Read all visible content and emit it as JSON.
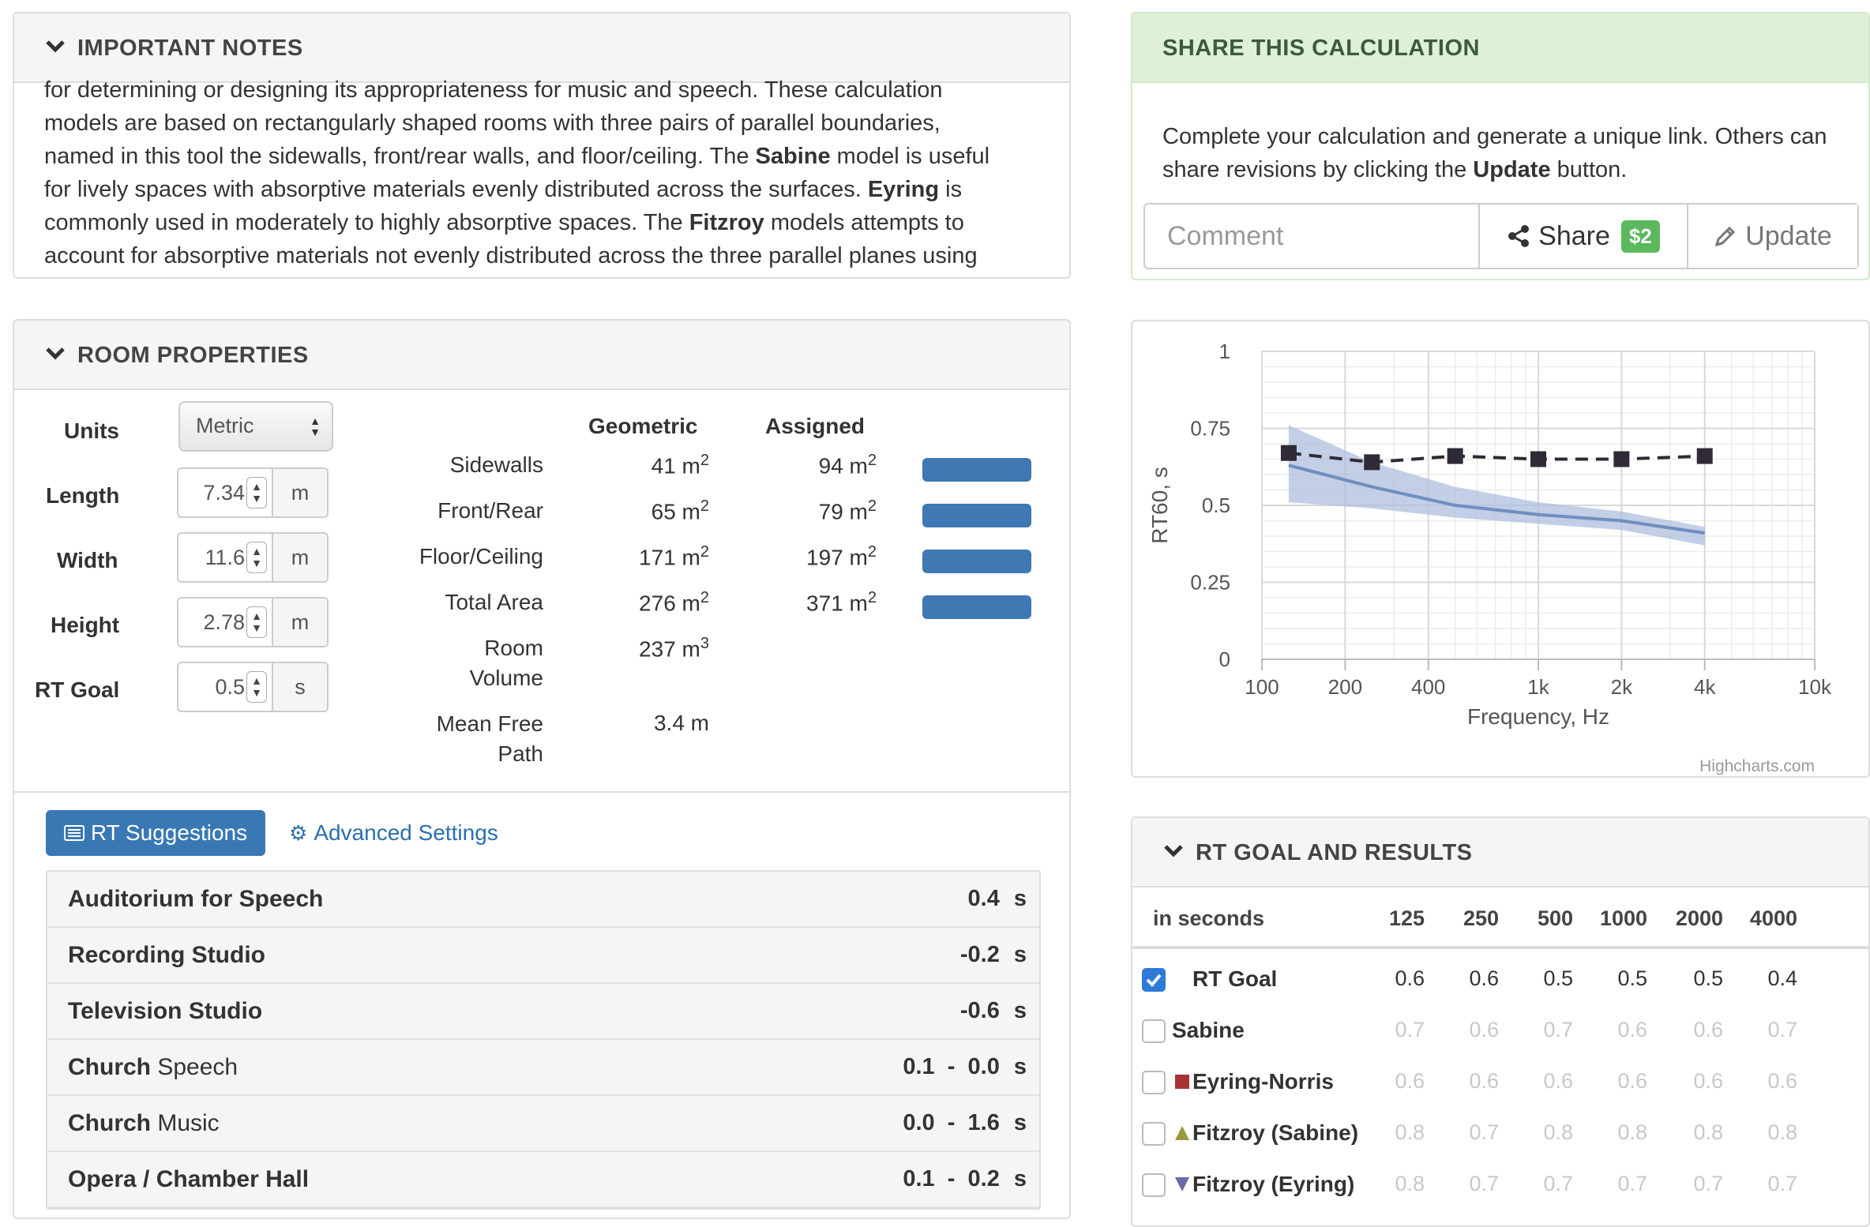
{
  "notes": {
    "title": "IMPORTANT NOTES",
    "lines": [
      [
        {
          "t": "for determining or designing its appropriateness for music and speech. These calculation"
        }
      ],
      [
        {
          "t": "models are based on rectangularly shaped rooms with three pairs of parallel boundaries,"
        }
      ],
      [
        {
          "t": "named in this tool the sidewalls, front/rear walls, and floor/ceiling. The "
        },
        {
          "t": "Sabine",
          "b": true
        },
        {
          "t": " model is useful"
        }
      ],
      [
        {
          "t": "for lively spaces with absorptive materials evenly distributed across the surfaces. "
        },
        {
          "t": "Eyring",
          "b": true
        },
        {
          "t": " is"
        }
      ],
      [
        {
          "t": "commonly used in moderately to highly absorptive spaces. The "
        },
        {
          "t": "Fitzroy",
          "b": true
        },
        {
          "t": " models attempts to"
        }
      ],
      [
        {
          "t": "account for absorptive materials not evenly distributed across the three parallel planes using"
        }
      ]
    ]
  },
  "share": {
    "title": "SHARE THIS CALCULATION",
    "desc_a": "Complete your calculation and generate a unique link. Others can share revisions by clicking the ",
    "desc_b": "Update",
    "desc_c": " button.",
    "comment_placeholder": "Comment",
    "share_label": "Share",
    "badge": "$2",
    "update_label": "Update"
  },
  "room": {
    "title": "ROOM PROPERTIES",
    "units_label": "Units",
    "units_value": "Metric",
    "fields": [
      {
        "label": "Length",
        "value": "7.34",
        "unit": "m"
      },
      {
        "label": "Width",
        "value": "11.6",
        "unit": "m"
      },
      {
        "label": "Height",
        "value": "2.78",
        "unit": "m"
      },
      {
        "label": "RT Goal",
        "value": "0.5",
        "unit": "s"
      }
    ],
    "col_geometric": "Geometric",
    "col_assigned": "Assigned",
    "rows": [
      {
        "label": "Sidewalls",
        "geo": "41 m",
        "geo_exp": "2",
        "asg": "94 m",
        "asg_exp": "2",
        "bar": true
      },
      {
        "label": "Front/Rear",
        "geo": "65 m",
        "geo_exp": "2",
        "asg": "79 m",
        "asg_exp": "2",
        "bar": true
      },
      {
        "label": "Floor/Ceiling",
        "geo": "171 m",
        "geo_exp": "2",
        "asg": "197 m",
        "asg_exp": "2",
        "bar": true
      },
      {
        "label": "Total Area",
        "geo": "276 m",
        "geo_exp": "2",
        "asg": "371 m",
        "asg_exp": "2",
        "bar": true
      },
      {
        "label": "Room\nVolume",
        "geo": "237 m",
        "geo_exp": "3",
        "asg": "",
        "asg_exp": "",
        "bar": false
      },
      {
        "label": "Mean Free\nPath",
        "geo": "3.4 m",
        "geo_exp": "",
        "asg": "",
        "asg_exp": "",
        "bar": false
      }
    ],
    "rt_suggestions_label": "RT Suggestions",
    "advanced_label": "Advanced Settings",
    "suggestions": [
      {
        "bold": "Auditorium for Speech",
        "rest": "",
        "value": "0.4",
        "unit": "s"
      },
      {
        "bold": "Recording Studio",
        "rest": "",
        "value": "-0.2",
        "unit": "s"
      },
      {
        "bold": "Television Studio",
        "rest": "",
        "value": "-0.6",
        "unit": "s"
      },
      {
        "bold": "Church",
        "rest": " Speech",
        "value": "0.1  -  0.0",
        "unit": "s"
      },
      {
        "bold": "Church",
        "rest": " Music",
        "value": "0.0  -  1.6",
        "unit": "s"
      },
      {
        "bold": "Opera / Chamber Hall",
        "rest": "",
        "value": "0.1  -  0.2",
        "unit": "s"
      }
    ]
  },
  "chart_data": {
    "type": "line",
    "title": "",
    "xlabel": "Frequency, Hz",
    "ylabel": "RT60, s",
    "x_scale": "log",
    "xlim": [
      100,
      10000
    ],
    "ylim": [
      0,
      1
    ],
    "x_ticks": [
      {
        "v": 100,
        "t": "100"
      },
      {
        "v": 200,
        "t": "200"
      },
      {
        "v": 400,
        "t": "400"
      },
      {
        "v": 1000,
        "t": "1k"
      },
      {
        "v": 2000,
        "t": "2k"
      },
      {
        "v": 4000,
        "t": "4k"
      },
      {
        "v": 10000,
        "t": "10k"
      }
    ],
    "y_ticks": [
      {
        "v": 0,
        "t": "0"
      },
      {
        "v": 0.25,
        "t": "0.25"
      },
      {
        "v": 0.5,
        "t": "0.5"
      },
      {
        "v": 0.75,
        "t": "0.75"
      },
      {
        "v": 1,
        "t": "1"
      }
    ],
    "grid": true,
    "credit": "Highcharts.com",
    "series": [
      {
        "style": "dashed-square-markers",
        "color": "#2f2a35",
        "x": [
          125,
          250,
          500,
          1000,
          2000,
          4000
        ],
        "y": [
          0.67,
          0.64,
          0.66,
          0.65,
          0.65,
          0.66
        ]
      },
      {
        "style": "solid-line",
        "color": "#6f8fbf",
        "x": [
          125,
          250,
          500,
          1000,
          2000,
          4000
        ],
        "y": [
          0.63,
          0.56,
          0.5,
          0.47,
          0.45,
          0.41
        ]
      },
      {
        "style": "range-band",
        "color": "#aebfdd",
        "x": [
          125,
          250,
          500,
          1000,
          2000,
          4000
        ],
        "low": [
          0.51,
          0.49,
          0.46,
          0.44,
          0.42,
          0.37
        ],
        "high": [
          0.76,
          0.64,
          0.56,
          0.51,
          0.48,
          0.43
        ]
      }
    ]
  },
  "results": {
    "title": "RT GOAL AND RESULTS",
    "head_label": "in seconds",
    "freqs": [
      "125",
      "250",
      "500",
      "1000",
      "2000",
      "4000"
    ],
    "rows": [
      {
        "name": "RT Goal",
        "checked": true,
        "marker": "none",
        "active": true,
        "values": [
          "0.6",
          "0.6",
          "0.5",
          "0.5",
          "0.5",
          "0.4"
        ]
      },
      {
        "name": "Sabine",
        "checked": false,
        "marker": "none-left",
        "active": false,
        "values": [
          "0.7",
          "0.6",
          "0.7",
          "0.6",
          "0.6",
          "0.7"
        ]
      },
      {
        "name": "Eyring-Norris",
        "checked": false,
        "marker": "square",
        "marker_color": "#a83232",
        "active": false,
        "values": [
          "0.6",
          "0.6",
          "0.6",
          "0.6",
          "0.6",
          "0.6"
        ]
      },
      {
        "name": "Fitzroy (Sabine)",
        "checked": false,
        "marker": "triangle-up",
        "marker_color": "#9a9a3a",
        "active": false,
        "values": [
          "0.8",
          "0.7",
          "0.8",
          "0.8",
          "0.8",
          "0.8"
        ]
      },
      {
        "name": "Fitzroy (Eyring)",
        "checked": false,
        "marker": "triangle-down",
        "marker_color": "#6a6aa8",
        "active": false,
        "values": [
          "0.8",
          "0.7",
          "0.7",
          "0.7",
          "0.7",
          "0.7"
        ]
      }
    ]
  },
  "colors": {
    "accent": "#3a78b5",
    "link": "#2a6fb0",
    "share_header": "#dff0d8",
    "badge": "#5cb85c",
    "bar": "#3f78b3"
  }
}
